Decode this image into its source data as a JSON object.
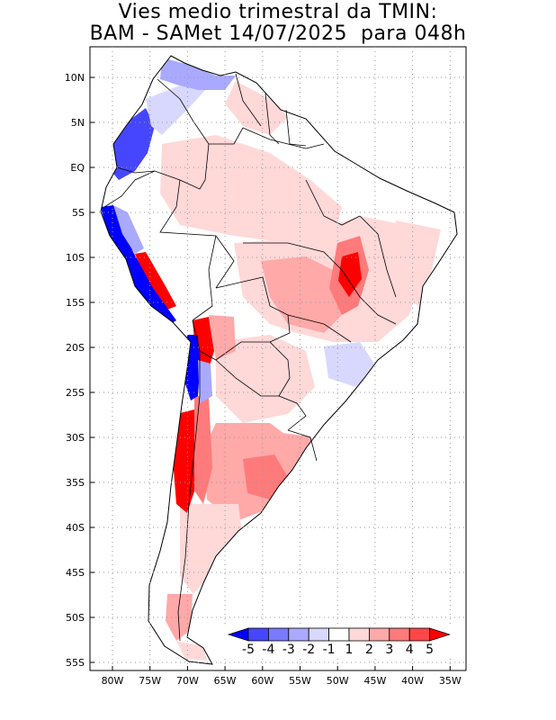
{
  "title": {
    "line1": "Vies medio trimestral da TMIN:",
    "line2": "BAM - SAMet 14/07/2025  para 048h"
  },
  "axes": {
    "lon_labels": [
      "80W",
      "75W",
      "70W",
      "65W",
      "60W",
      "55W",
      "50W",
      "45W",
      "40W",
      "35W"
    ],
    "lat_labels": [
      "10N",
      "5N",
      "EQ",
      "5S",
      "10S",
      "15S",
      "20S",
      "25S",
      "30S",
      "35S",
      "40S",
      "45S",
      "50S",
      "55S"
    ]
  },
  "colorbar": {
    "labels": [
      "-5",
      "-4",
      "-3",
      "-2",
      "-1",
      "1",
      "2",
      "3",
      "4",
      "5"
    ],
    "colors": [
      "#0000ff",
      "#4646ff",
      "#7a7aff",
      "#a9a9ff",
      "#d8d8ff",
      "#ffffff",
      "#ffd8d8",
      "#ffa9a9",
      "#ff7a7a",
      "#ff4646",
      "#ff0000"
    ]
  },
  "colors": {
    "land_neutral": "#ffffff",
    "light_red": "#ffd8d8",
    "mid_red": "#ffa9a9",
    "strong_red": "#ff7a7a",
    "deep_red": "#ff0000",
    "light_blue": "#d8d8ff",
    "mid_blue": "#a9a9ff",
    "strong_blue": "#4646ff",
    "deep_blue": "#0000ff",
    "grid": "#9a9a9a"
  }
}
